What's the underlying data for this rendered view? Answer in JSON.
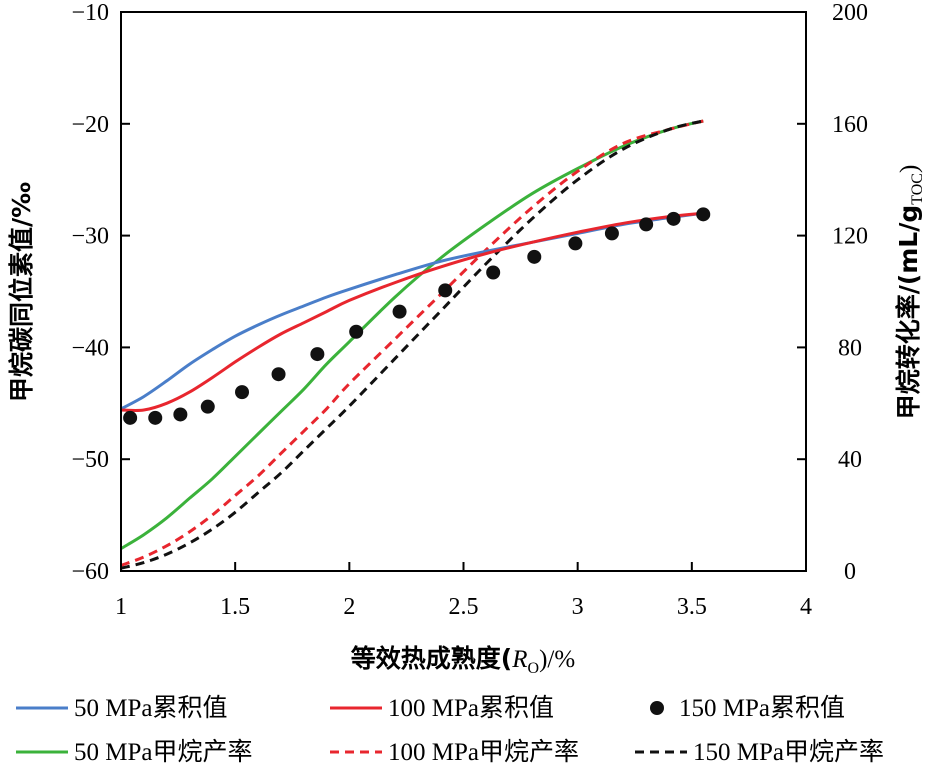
{
  "chart_data": {
    "type": "line",
    "xlabel": "等效热成熟度(Ro)/%",
    "xlabel_parts": [
      "等效热成熟度(",
      "R",
      "O",
      ")/%"
    ],
    "ylabel_left": "甲烷碳同位素值/‰",
    "ylabel_right": "甲烷转化率/(mL/gTOC)",
    "ylabel_right_parts": [
      "甲烷转化率/(mL/g",
      "TOC",
      ")"
    ],
    "xlim": [
      1,
      4
    ],
    "ylim_left": [
      -60,
      -10
    ],
    "ylim_right": [
      0,
      200
    ],
    "x_ticks": [
      1,
      1.5,
      2,
      2.5,
      3,
      3.5,
      4
    ],
    "x_tick_labels": [
      "1",
      "1.5",
      "2",
      "2.5",
      "3",
      "3.5",
      "4"
    ],
    "y_left_ticks": [
      -10,
      -20,
      -30,
      -40,
      -50,
      -60
    ],
    "y_left_tick_labels": [
      "−10",
      "−20",
      "−30",
      "−40",
      "−50",
      "−60"
    ],
    "y_right_ticks": [
      200,
      160,
      120,
      80,
      40,
      0
    ],
    "y_right_tick_labels": [
      "200",
      "160",
      "120",
      "80",
      "40",
      "0"
    ],
    "grid": false,
    "legend_position": "bottom",
    "series": [
      {
        "name": "50 MPa累积值",
        "axis": "left",
        "style": "solid",
        "color": "#4a7ec9",
        "x": [
          1.0,
          1.1,
          1.2,
          1.3,
          1.4,
          1.5,
          1.6,
          1.7,
          1.8,
          1.9,
          2.0,
          2.2,
          2.4,
          2.6,
          2.8,
          3.0,
          3.2,
          3.4,
          3.55
        ],
        "y": [
          -45.5,
          -44.4,
          -43.0,
          -41.5,
          -40.2,
          -39.0,
          -38.0,
          -37.1,
          -36.3,
          -35.5,
          -34.8,
          -33.5,
          -32.3,
          -31.4,
          -30.6,
          -29.8,
          -29.0,
          -28.4,
          -28.0
        ]
      },
      {
        "name": "100 MPa累积值",
        "axis": "left",
        "style": "solid",
        "color": "#e8262e",
        "x": [
          1.0,
          1.1,
          1.2,
          1.3,
          1.4,
          1.5,
          1.6,
          1.7,
          1.8,
          1.9,
          2.0,
          2.2,
          2.4,
          2.6,
          2.8,
          3.0,
          3.2,
          3.4,
          3.55
        ],
        "y": [
          -45.6,
          -45.6,
          -45.0,
          -44.0,
          -42.7,
          -41.3,
          -40.0,
          -38.8,
          -37.8,
          -36.8,
          -35.8,
          -34.2,
          -32.8,
          -31.6,
          -30.6,
          -29.7,
          -28.9,
          -28.3,
          -28.0
        ]
      },
      {
        "name": "150 MPa累积值",
        "axis": "left",
        "style": "marker",
        "color": "#111111",
        "x": [
          1.04,
          1.15,
          1.26,
          1.38,
          1.53,
          1.69,
          1.86,
          2.03,
          2.22,
          2.42,
          2.63,
          2.81,
          2.99,
          3.15,
          3.3,
          3.42,
          3.55
        ],
        "y": [
          -46.3,
          -46.3,
          -46.0,
          -45.3,
          -44.0,
          -42.4,
          -40.6,
          -38.6,
          -36.8,
          -34.9,
          -33.3,
          -31.9,
          -30.7,
          -29.8,
          -29.0,
          -28.5,
          -28.1
        ]
      },
      {
        "name": "50 MPa甲烷产率",
        "axis": "right",
        "style": "solid",
        "color": "#3bb23b",
        "x": [
          1.0,
          1.1,
          1.2,
          1.3,
          1.4,
          1.5,
          1.6,
          1.7,
          1.8,
          1.9,
          2.0,
          2.2,
          2.4,
          2.6,
          2.8,
          3.0,
          3.2,
          3.4,
          3.55
        ],
        "y": [
          8,
          13,
          19,
          26,
          33,
          41,
          49,
          57,
          65,
          74,
          82,
          98,
          112,
          124,
          135,
          144,
          152,
          158,
          161
        ]
      },
      {
        "name": "100 MPa甲烷产率",
        "axis": "right",
        "style": "dashed",
        "color": "#e8262e",
        "x": [
          1.0,
          1.1,
          1.2,
          1.3,
          1.4,
          1.5,
          1.6,
          1.7,
          1.8,
          1.9,
          2.0,
          2.2,
          2.4,
          2.6,
          2.8,
          3.0,
          3.2,
          3.4,
          3.55
        ],
        "y": [
          2,
          5,
          9,
          14,
          20,
          27,
          34,
          42,
          50,
          58,
          67,
          83,
          99,
          115,
          130,
          143,
          153,
          158,
          161
        ]
      },
      {
        "name": "150 MPa甲烷产率",
        "axis": "right",
        "style": "dashed",
        "color": "#111111",
        "x": [
          1.0,
          1.1,
          1.2,
          1.3,
          1.4,
          1.5,
          1.6,
          1.7,
          1.8,
          1.9,
          2.0,
          2.2,
          2.4,
          2.6,
          2.8,
          3.0,
          3.2,
          3.4,
          3.55
        ],
        "y": [
          1,
          3,
          6,
          10,
          15,
          21,
          28,
          35,
          43,
          51,
          59,
          76,
          93,
          110,
          126,
          140,
          151,
          158,
          161
        ]
      }
    ]
  }
}
